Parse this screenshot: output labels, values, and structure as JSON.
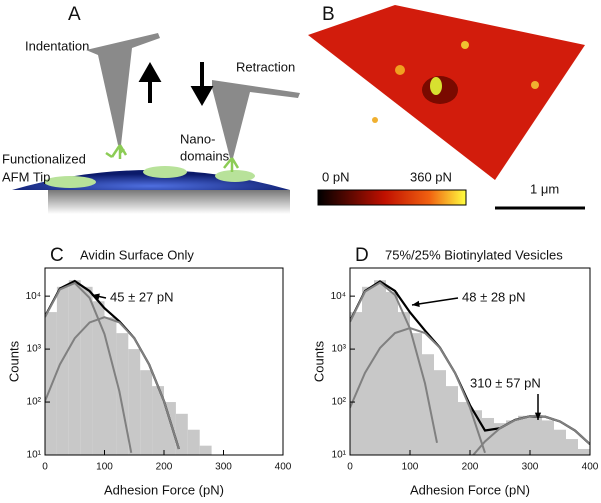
{
  "panels": {
    "a": {
      "label": "A",
      "indentation": "Indentation",
      "retraction": "Retraction",
      "nanodomains": [
        "Nano-",
        "domains"
      ],
      "tip": [
        "Functionalized",
        "AFM Tip"
      ]
    },
    "b": {
      "label": "B",
      "colorbar_min": "0 pN",
      "colorbar_max": "360 pN",
      "scale": "1 μm"
    }
  },
  "chart_data": [
    {
      "type": "histogram",
      "panel_label": "C",
      "title": "Avidin Surface Only",
      "x_label": "Adhesion Force (pN)",
      "y_label": "Counts",
      "log_y": true,
      "bar_color": "#c8c8c8",
      "bins": [
        0,
        20,
        40,
        60,
        80,
        100,
        120,
        140,
        160,
        180,
        200,
        220,
        240,
        260,
        280,
        300
      ],
      "values": [
        5000,
        15000,
        20000,
        15000,
        8000,
        4000,
        2000,
        1000,
        400,
        200,
        100,
        60,
        30,
        15,
        10
      ],
      "series": [
        {
          "color": "#000000",
          "x": [
            0,
            25,
            50,
            75,
            100,
            125,
            150,
            175,
            200,
            225
          ],
          "values": [
            4134,
            13900,
            19280,
            12440,
            5920,
            3340,
            1610,
            513,
            104,
            13
          ]
        },
        {
          "color": "#808080",
          "x": [
            0,
            25,
            50,
            75,
            100,
            125,
            145
          ],
          "values": [
            4030,
            13390,
            17670,
            9250,
            1920,
            159,
            11
          ]
        },
        {
          "color": "#808080",
          "x": [
            0,
            25,
            50,
            75,
            100,
            125,
            150,
            175,
            200,
            225
          ],
          "values": [
            104,
            513,
            1605,
            3185,
            4000,
            3185,
            1605,
            513,
            104,
            13
          ]
        }
      ],
      "annotations": [
        "45 ± 27 pN"
      ],
      "xlim": [
        0,
        400
      ],
      "xticks": [
        0,
        100,
        200,
        300,
        400
      ],
      "ylim": [
        10,
        34000
      ],
      "yticks": [
        {
          "value": 10,
          "label": "10¹"
        },
        {
          "value": 100,
          "label": "10²"
        },
        {
          "value": 1000,
          "label": "10³"
        },
        {
          "value": 10000,
          "label": "10⁴"
        }
      ]
    },
    {
      "type": "histogram",
      "panel_label": "D",
      "title": "75%/25% Biotinylated Vesicles",
      "x_label": "Adhesion Force (pN)",
      "y_label": "Counts",
      "log_y": true,
      "bar_color": "#c8c8c8",
      "bins": [
        0,
        20,
        40,
        60,
        80,
        100,
        120,
        140,
        160,
        180,
        200,
        220,
        240,
        260,
        280,
        300,
        320,
        340,
        360,
        380,
        400
      ],
      "values": [
        5000,
        15000,
        20000,
        12000,
        5000,
        2000,
        800,
        400,
        200,
        100,
        70,
        50,
        40,
        45,
        55,
        55,
        45,
        30,
        20,
        13
      ],
      "series": [
        {
          "color": "#000000",
          "x": [
            0,
            25,
            50,
            75,
            100,
            125,
            150,
            175,
            200,
            225,
            250,
            275,
            300,
            325,
            350,
            375,
            400
          ],
          "values": [
            3358,
            12526,
            19000,
            12513,
            4940,
            2238,
            1060,
            356,
            87,
            29,
            32,
            46,
            54,
            53,
            43,
            29,
            16
          ]
        },
        {
          "color": "#808080",
          "x": [
            0,
            25,
            50,
            75,
            100,
            125,
            145
          ],
          "values": [
            3280,
            12170,
            17950,
            10500,
            2440,
            225,
            17
          ]
        },
        {
          "color": "#808080",
          "x": [
            0,
            25,
            50,
            75,
            100,
            125,
            150,
            175,
            200,
            225
          ],
          "values": [
            78,
            356,
            1051,
            2013,
            2500,
            2013,
            1051,
            356,
            78,
            11
          ]
        },
        {
          "color": "#808080",
          "x": [
            200,
            225,
            250,
            275,
            300,
            310,
            325,
            350,
            375,
            400
          ],
          "values": [
            8.5,
            18,
            32,
            45.5,
            54,
            55,
            53,
            43,
            29,
            16
          ]
        }
      ],
      "annotations": [
        "48 ± 28 pN",
        "310 ± 57 pN"
      ],
      "xlim": [
        0,
        400
      ],
      "xticks": [
        0,
        100,
        200,
        300,
        400
      ],
      "ylim": [
        10,
        34000
      ],
      "yticks": [
        {
          "value": 10,
          "label": "10¹"
        },
        {
          "value": 100,
          "label": "10²"
        },
        {
          "value": 1000,
          "label": "10³"
        },
        {
          "value": 10000,
          "label": "10⁴"
        }
      ]
    }
  ]
}
